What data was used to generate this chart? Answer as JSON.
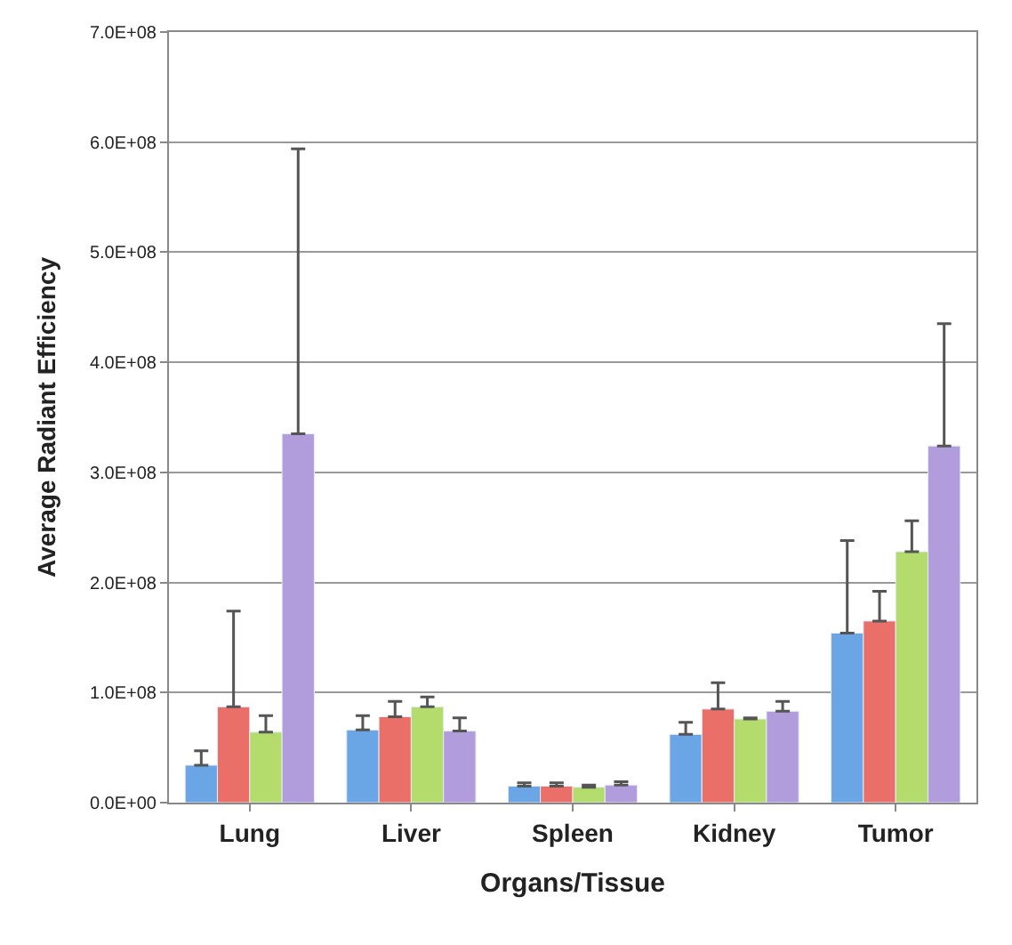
{
  "chart_data": {
    "type": "bar",
    "xlabel": "Organs/Tissue",
    "ylabel": "Average Radiant Efficiency",
    "categories": [
      "Lung",
      "Liver",
      "Spleen",
      "Kidney",
      "Tumor"
    ],
    "series": [
      {
        "color": "#6aa6e6",
        "values": [
          34000000,
          66000000,
          15000000,
          62000000,
          154000000
        ],
        "errors": [
          [
            34000000,
            47000000
          ],
          [
            66000000,
            79000000
          ],
          [
            15000000,
            18000000
          ],
          [
            62000000,
            73000000
          ],
          [
            154000000,
            238000000
          ]
        ]
      },
      {
        "color": "#ea6f68",
        "values": [
          87000000,
          78000000,
          15000000,
          85000000,
          165000000
        ],
        "errors": [
          [
            87000000,
            174000000
          ],
          [
            78000000,
            92000000
          ],
          [
            15000000,
            18000000
          ],
          [
            85000000,
            109000000
          ],
          [
            165000000,
            192000000
          ]
        ]
      },
      {
        "color": "#b4dc6c",
        "values": [
          64000000,
          87000000,
          14000000,
          76000000,
          228000000
        ],
        "errors": [
          [
            64000000,
            79000000
          ],
          [
            87000000,
            96000000
          ],
          [
            14000000,
            16000000
          ],
          [
            76000000,
            77000000
          ],
          [
            228000000,
            256000000
          ]
        ]
      },
      {
        "color": "#b19ddc",
        "values": [
          335000000,
          65000000,
          16000000,
          83000000,
          324000000
        ],
        "errors": [
          [
            335000000,
            594000000
          ],
          [
            65000000,
            77000000
          ],
          [
            16000000,
            19000000
          ],
          [
            83000000,
            92000000
          ],
          [
            324000000,
            435000000
          ]
        ]
      }
    ],
    "ylim": [
      0,
      700000000
    ],
    "yticks": [
      {
        "value": 0,
        "label": "0.0E+00"
      },
      {
        "value": 100000000,
        "label": "1.0E+08"
      },
      {
        "value": 200000000,
        "label": "2.0E+08"
      },
      {
        "value": 300000000,
        "label": "3.0E+08"
      },
      {
        "value": 400000000,
        "label": "4.0E+08"
      },
      {
        "value": 500000000,
        "label": "5.0E+08"
      },
      {
        "value": 600000000,
        "label": "6.0E+08"
      },
      {
        "value": 700000000,
        "label": "7.0E+08"
      }
    ],
    "grid": "y"
  }
}
